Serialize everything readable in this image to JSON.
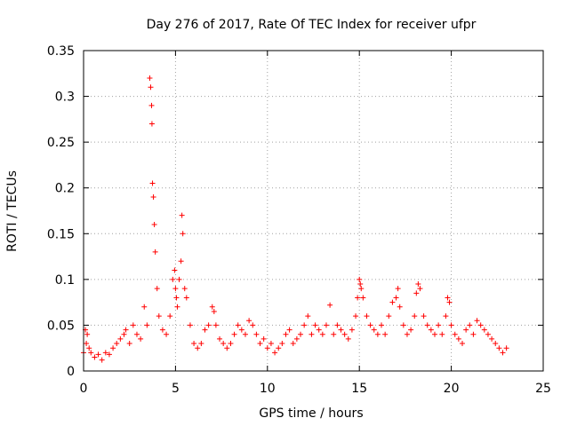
{
  "chart_data": {
    "type": "scatter",
    "title": "Day 276 of 2017, Rate Of TEC Index for receiver ufpr",
    "xlabel": "GPS time / hours",
    "ylabel": "ROTI / TECUs",
    "xlim": [
      0,
      25
    ],
    "ylim": [
      0,
      0.35
    ],
    "x_ticks": [
      "0",
      "5",
      "10",
      "15",
      "20",
      "25"
    ],
    "y_ticks": [
      "0",
      "0.05",
      "0.1",
      "0.15",
      "0.2",
      "0.25",
      "0.3",
      "0.35"
    ],
    "grid": true,
    "marker": "plus",
    "color": "#ff0000",
    "series": [
      {
        "name": "ROTI",
        "x": [
          0.0,
          0.1,
          0.15,
          0.2,
          0.3,
          0.4,
          0.6,
          0.8,
          1.0,
          1.2,
          1.4,
          1.6,
          1.8,
          2.0,
          2.2,
          2.3,
          2.5,
          2.7,
          2.9,
          3.1,
          3.3,
          3.45,
          3.6,
          3.65,
          3.7,
          3.72,
          3.75,
          3.8,
          3.85,
          3.9,
          4.0,
          4.1,
          4.3,
          4.5,
          4.7,
          4.85,
          4.95,
          5.0,
          5.05,
          5.1,
          5.2,
          5.3,
          5.35,
          5.4,
          5.5,
          5.6,
          5.8,
          6.0,
          6.2,
          6.4,
          6.6,
          6.8,
          7.0,
          7.1,
          7.2,
          7.4,
          7.6,
          7.8,
          8.0,
          8.2,
          8.4,
          8.6,
          8.8,
          9.0,
          9.2,
          9.4,
          9.6,
          9.8,
          10.0,
          10.2,
          10.4,
          10.6,
          10.8,
          11.0,
          11.2,
          11.4,
          11.6,
          11.8,
          12.0,
          12.2,
          12.4,
          12.6,
          12.8,
          13.0,
          13.2,
          13.4,
          13.6,
          13.8,
          14.0,
          14.2,
          14.4,
          14.6,
          14.8,
          14.9,
          15.0,
          15.05,
          15.1,
          15.2,
          15.4,
          15.6,
          15.8,
          16.0,
          16.2,
          16.4,
          16.6,
          16.8,
          17.0,
          17.1,
          17.2,
          17.4,
          17.6,
          17.8,
          18.0,
          18.1,
          18.2,
          18.3,
          18.5,
          18.7,
          18.9,
          19.1,
          19.3,
          19.5,
          19.7,
          19.8,
          19.9,
          20.0,
          20.2,
          20.4,
          20.6,
          20.8,
          21.0,
          21.2,
          21.4,
          21.6,
          21.8,
          22.0,
          22.2,
          22.4,
          22.6,
          22.8,
          23.0
        ],
        "y": [
          0.02,
          0.045,
          0.03,
          0.04,
          0.025,
          0.02,
          0.015,
          0.018,
          0.012,
          0.02,
          0.018,
          0.025,
          0.03,
          0.035,
          0.04,
          0.045,
          0.03,
          0.05,
          0.04,
          0.035,
          0.07,
          0.05,
          0.32,
          0.31,
          0.29,
          0.27,
          0.205,
          0.19,
          0.16,
          0.13,
          0.09,
          0.06,
          0.045,
          0.04,
          0.06,
          0.1,
          0.11,
          0.09,
          0.08,
          0.07,
          0.1,
          0.12,
          0.17,
          0.15,
          0.09,
          0.08,
          0.05,
          0.03,
          0.025,
          0.03,
          0.045,
          0.05,
          0.07,
          0.065,
          0.05,
          0.035,
          0.03,
          0.025,
          0.03,
          0.04,
          0.05,
          0.045,
          0.04,
          0.055,
          0.05,
          0.04,
          0.03,
          0.035,
          0.025,
          0.03,
          0.02,
          0.025,
          0.03,
          0.04,
          0.045,
          0.03,
          0.035,
          0.04,
          0.05,
          0.06,
          0.04,
          0.05,
          0.045,
          0.04,
          0.05,
          0.072,
          0.04,
          0.05,
          0.045,
          0.04,
          0.035,
          0.045,
          0.06,
          0.08,
          0.1,
          0.095,
          0.09,
          0.08,
          0.06,
          0.05,
          0.045,
          0.04,
          0.05,
          0.04,
          0.06,
          0.075,
          0.08,
          0.09,
          0.07,
          0.05,
          0.04,
          0.045,
          0.06,
          0.085,
          0.095,
          0.09,
          0.06,
          0.05,
          0.045,
          0.04,
          0.05,
          0.04,
          0.06,
          0.08,
          0.075,
          0.05,
          0.04,
          0.035,
          0.03,
          0.045,
          0.05,
          0.04,
          0.055,
          0.05,
          0.045,
          0.04,
          0.035,
          0.03,
          0.025,
          0.02,
          0.025
        ]
      }
    ]
  }
}
